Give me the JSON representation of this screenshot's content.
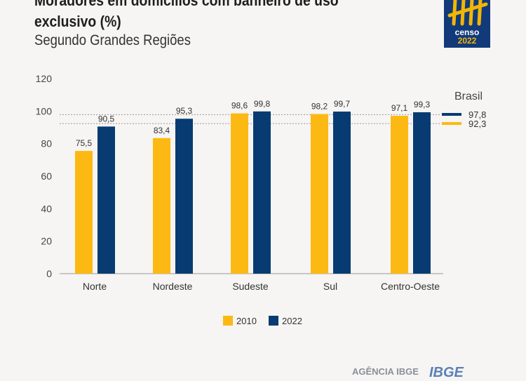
{
  "header": {
    "title": "Moradores em domicílios com banheiro de uso exclusivo (%)",
    "subtitle": "Segundo Grandes Regiões"
  },
  "logo": {
    "line1": "censo",
    "line2": "2022"
  },
  "footer": {
    "agencia": "AGÊNCIA IBGE",
    "ibge": "IBGE"
  },
  "colors": {
    "s2010": "#fdb913",
    "s2022": "#073b72"
  },
  "chart_data": {
    "type": "bar",
    "title": "Moradores em domicílios com banheiro de uso exclusivo (%)",
    "subtitle": "Segundo Grandes Regiões",
    "categories": [
      "Norte",
      "Nordeste",
      "Sudeste",
      "Sul",
      "Centro-Oeste"
    ],
    "series": [
      {
        "name": "2010",
        "values": [
          75.5,
          83.4,
          98.6,
          98.2,
          97.1
        ],
        "labels": [
          "75,5",
          "83,4",
          "98,6",
          "98,2",
          "97,1"
        ]
      },
      {
        "name": "2022",
        "values": [
          90.5,
          95.3,
          99.8,
          99.7,
          99.3
        ],
        "labels": [
          "90,5",
          "95,3",
          "99,8",
          "99,7",
          "99,3"
        ]
      }
    ],
    "reference": {
      "label": "Brasil",
      "lines": [
        {
          "series": "2022",
          "value": 97.8,
          "label": "97,8"
        },
        {
          "series": "2010",
          "value": 92.3,
          "label": "92,3"
        }
      ]
    },
    "ylim": [
      0,
      120
    ],
    "yticks": [
      0,
      20,
      40,
      60,
      80,
      100,
      120
    ],
    "grid": false,
    "legend": "bottom"
  }
}
